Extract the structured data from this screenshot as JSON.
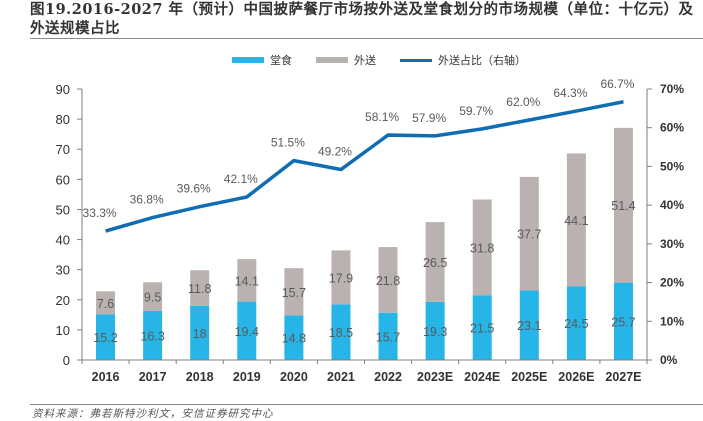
{
  "header": {
    "title": "图19.2016-2027 年（预计）中国披萨餐厅市场按外送及堂食划分的市场规模（单位：十亿元）及外送规模占比"
  },
  "source": "资料来源：弗若斯特沙利文，安信证券研究中心",
  "colors": {
    "dine_in": "#27b4e6",
    "delivery": "#b9b2b0",
    "share_line": "#0f6db3",
    "axis": "#7f7f7f"
  },
  "chart_data": {
    "type": "bar",
    "stacked": true,
    "title": "2016-2027年（预计）中国披萨餐厅市场按外送及堂食划分的市场规模（单位：十亿元）及外送规模占比",
    "xlabel": "",
    "ylabel": "",
    "y2label": "",
    "categories": [
      "2016",
      "2017",
      "2018",
      "2019",
      "2020",
      "2021",
      "2022",
      "2023E",
      "2024E",
      "2025E",
      "2026E",
      "2027E"
    ],
    "series": [
      {
        "name": "堂食",
        "type": "bar",
        "axis": "left",
        "values": [
          15.2,
          16.3,
          18,
          19.4,
          14.8,
          18.5,
          15.7,
          19.3,
          21.5,
          23.1,
          24.5,
          25.7
        ],
        "labels": [
          "15.2",
          "16.3",
          "18",
          "19.4",
          "14.8",
          "18.5",
          "15.7",
          "19.3",
          "21.5",
          "23.1",
          "24.5",
          "25.7"
        ]
      },
      {
        "name": "外送",
        "type": "bar",
        "axis": "left",
        "values": [
          7.6,
          9.5,
          11.8,
          14.1,
          15.7,
          17.9,
          21.8,
          26.5,
          31.8,
          37.7,
          44.1,
          51.4
        ],
        "labels": [
          "7.6",
          "9.5",
          "11.8",
          "14.1",
          "15.7",
          "17.9",
          "21.8",
          "26.5",
          "31.8",
          "37.7",
          "44.1",
          "51.4"
        ]
      },
      {
        "name": "外送占比（右轴）",
        "type": "line",
        "axis": "right",
        "values": [
          33.3,
          36.8,
          39.6,
          42.1,
          51.5,
          49.2,
          58.1,
          57.9,
          59.7,
          62.0,
          64.3,
          66.7
        ],
        "labels": [
          "33.3%",
          "36.8%",
          "39.6%",
          "42.1%",
          "51.5%",
          "49.2%",
          "58.1%",
          "57.9%",
          "59.7%",
          "62.0%",
          "64.3%",
          "66.7%"
        ]
      }
    ],
    "ylim": [
      0,
      90
    ],
    "yticks": [
      "0",
      "10",
      "20",
      "30",
      "40",
      "50",
      "60",
      "70",
      "80",
      "90"
    ],
    "y2lim": [
      0,
      70
    ],
    "y2ticks": [
      "0%",
      "10%",
      "20%",
      "30%",
      "40%",
      "50%",
      "60%",
      "70%"
    ],
    "legend": {
      "placement": "top-center",
      "entries": [
        "堂食",
        "外送",
        "外送占比（右轴）"
      ]
    },
    "grid": false
  }
}
